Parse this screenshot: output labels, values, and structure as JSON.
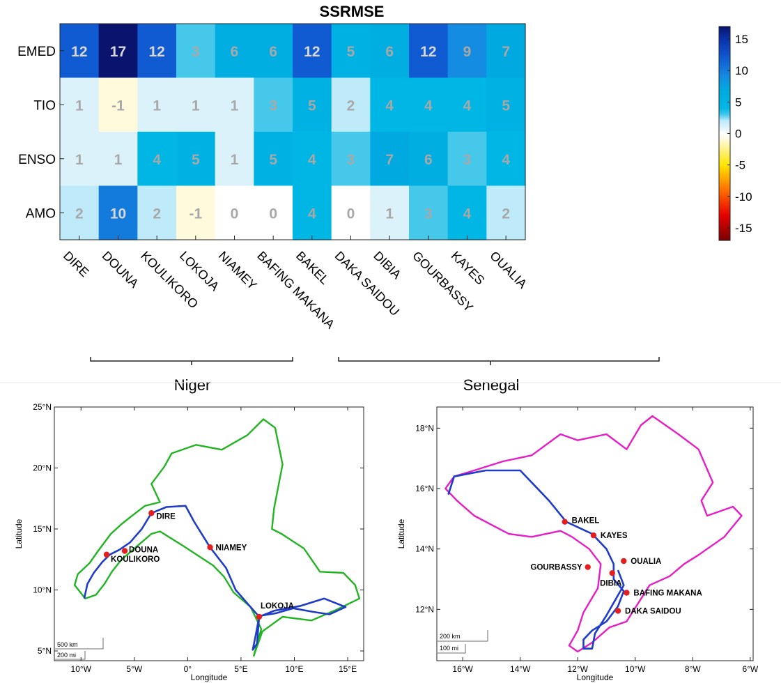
{
  "chart_data": [
    {
      "type": "heatmap",
      "title": "SSRMSE",
      "rows": [
        "EMED",
        "TIO",
        "ENSO",
        "AMO"
      ],
      "columns": [
        "DIRE",
        "DOUNA",
        "KOULIKORO",
        "LOKOJA",
        "NIAMEY",
        "BAFING MAKANA",
        "BAKEL",
        "DAKA SAIDOU",
        "DIBIA",
        "GOURBASSY",
        "KAYES",
        "OUALIA"
      ],
      "values": [
        [
          12,
          17,
          12,
          3,
          6,
          6,
          12,
          5,
          6,
          12,
          9,
          7
        ],
        [
          1,
          -1,
          1,
          1,
          1,
          3,
          5,
          2,
          4,
          4,
          4,
          5
        ],
        [
          1,
          1,
          4,
          5,
          1,
          5,
          4,
          3,
          7,
          6,
          3,
          4
        ],
        [
          2,
          10,
          2,
          -1,
          0,
          0,
          4,
          0,
          1,
          3,
          4,
          2
        ]
      ],
      "value_labels": [
        [
          "12",
          "17",
          "12",
          "3",
          "6",
          "6",
          "12",
          "5",
          "6",
          "12",
          "9",
          "7"
        ],
        [
          "1",
          "-1",
          "1",
          "1",
          "1",
          "3",
          "5",
          "2",
          "4",
          "4",
          "4",
          "5"
        ],
        [
          "1",
          "1",
          "4",
          "5",
          "1",
          "5",
          "4",
          "3",
          "7",
          "6",
          "3",
          "4"
        ],
        [
          "2",
          "10",
          "2",
          "-1",
          "0",
          "0",
          "4",
          "0",
          "1",
          "3",
          "4",
          "2"
        ]
      ],
      "colorbar": {
        "range": [
          -17,
          17
        ],
        "ticks": [
          15,
          10,
          5,
          0,
          -5,
          -10,
          -15
        ],
        "tick_labels": [
          "15",
          "10",
          "5",
          "0",
          "-5",
          "-10",
          "-15"
        ]
      },
      "groups": [
        {
          "name": "Niger",
          "columns": [
            "DIRE",
            "DOUNA",
            "KOULIKORO",
            "LOKOJA",
            "NIAMEY"
          ]
        },
        {
          "name": "Senegal",
          "columns": [
            "BAFING MAKANA",
            "BAKEL",
            "DAKA SAIDOU",
            "DIBIA",
            "GOURBASSY",
            "KAYES",
            "OUALIA"
          ]
        }
      ]
    },
    {
      "type": "map",
      "title": "",
      "xlabel": "Longitude",
      "ylabel": "Latitude",
      "xlim": [
        -12.5,
        16.5
      ],
      "ylim": [
        4.2,
        25
      ],
      "xticks": [
        -10,
        -5,
        0,
        5,
        10,
        15
      ],
      "xtick_labels": [
        "10°W",
        "5°W",
        "0°",
        "5°E",
        "10°E",
        "15°E"
      ],
      "yticks": [
        5,
        10,
        15,
        20,
        25
      ],
      "ytick_labels": [
        "5°N",
        "10°N",
        "15°N",
        "20°N",
        "25°N"
      ],
      "scale_labels": [
        "500 km",
        "200 mi"
      ],
      "colors": {
        "basin": "#22b422",
        "river": "#1e3cc8",
        "station": "#e61e1e"
      },
      "stations": [
        {
          "name": "DIRE",
          "lon": -3.4,
          "lat": 16.3
        },
        {
          "name": "DOUNA",
          "lon": -5.9,
          "lat": 13.2
        },
        {
          "name": "KOULIKORO",
          "lon": -7.6,
          "lat": 12.9
        },
        {
          "name": "NIAMEY",
          "lon": 2.1,
          "lat": 13.5
        },
        {
          "name": "LOKOJA",
          "lon": 6.7,
          "lat": 7.8
        }
      ],
      "basin_outline": [
        [
          -9.6,
          9.3
        ],
        [
          -10.6,
          10.4
        ],
        [
          -10.3,
          11.3
        ],
        [
          -9.2,
          12.2
        ],
        [
          -8.4,
          13.2
        ],
        [
          -7.2,
          14.6
        ],
        [
          -6.2,
          15.4
        ],
        [
          -5.2,
          16.1
        ],
        [
          -4.0,
          16.9
        ],
        [
          -2.6,
          17.2
        ],
        [
          -3.4,
          18.7
        ],
        [
          -2.2,
          20.1
        ],
        [
          -1.5,
          21.2
        ],
        [
          0.8,
          21.9
        ],
        [
          3.2,
          21.5
        ],
        [
          5.6,
          22.7
        ],
        [
          7.1,
          24.0
        ],
        [
          8.2,
          23.3
        ],
        [
          8.9,
          20.3
        ],
        [
          8.1,
          16.7
        ],
        [
          7.9,
          15.0
        ],
        [
          8.8,
          14.6
        ],
        [
          10.9,
          13.4
        ],
        [
          12.4,
          11.5
        ],
        [
          14.6,
          11.4
        ],
        [
          15.7,
          10.4
        ],
        [
          16.1,
          9.3
        ],
        [
          14.0,
          8.4
        ],
        [
          11.6,
          7.5
        ],
        [
          8.9,
          7.8
        ],
        [
          7.0,
          6.6
        ],
        [
          6.2,
          4.6
        ],
        [
          6.9,
          6.8
        ],
        [
          5.9,
          8.6
        ],
        [
          4.3,
          9.8
        ],
        [
          3.4,
          11.1
        ],
        [
          2.4,
          12.0
        ],
        [
          -0.4,
          13.6
        ],
        [
          -2.6,
          14.8
        ],
        [
          -3.4,
          14.6
        ],
        [
          -4.6,
          13.7
        ],
        [
          -6.2,
          12.5
        ],
        [
          -7.1,
          11.5
        ],
        [
          -7.8,
          10.5
        ],
        [
          -8.6,
          9.6
        ],
        [
          -9.6,
          9.3
        ]
      ],
      "river_path": [
        [
          -9.7,
          9.3
        ],
        [
          -9.4,
          10.5
        ],
        [
          -8.8,
          11.4
        ],
        [
          -8.0,
          12.3
        ],
        [
          -7.3,
          12.9
        ],
        [
          -6.4,
          13.3
        ],
        [
          -5.4,
          13.9
        ],
        [
          -4.3,
          15.0
        ],
        [
          -3.4,
          16.3
        ],
        [
          -2.0,
          16.8
        ],
        [
          -0.2,
          16.9
        ],
        [
          0.6,
          15.6
        ],
        [
          2.1,
          13.5
        ],
        [
          3.6,
          11.8
        ],
        [
          4.5,
          10.0
        ],
        [
          5.8,
          8.7
        ],
        [
          6.7,
          7.8
        ],
        [
          6.4,
          6.4
        ],
        [
          6.1,
          5.1
        ],
        [
          6.5,
          5.6
        ],
        [
          6.7,
          7.8
        ],
        [
          8.1,
          8.3
        ],
        [
          10.6,
          8.7
        ],
        [
          12.8,
          9.3
        ],
        [
          14.8,
          8.6
        ],
        [
          13.3,
          8.0
        ],
        [
          11.8,
          8.2
        ],
        [
          9.9,
          8.5
        ],
        [
          8.3,
          8.1
        ],
        [
          6.9,
          7.9
        ]
      ]
    },
    {
      "type": "map",
      "title": "",
      "xlabel": "Longitude",
      "ylabel": "Latitude",
      "xlim": [
        -16.9,
        -5.9
      ],
      "ylim": [
        10.3,
        18.7
      ],
      "xticks": [
        -16,
        -14,
        -12,
        -10,
        -8,
        -6
      ],
      "xtick_labels": [
        "16°W",
        "14°W",
        "12°W",
        "10°W",
        "8°W",
        "6°W"
      ],
      "yticks": [
        12,
        14,
        16,
        18
      ],
      "ytick_labels": [
        "12°N",
        "14°N",
        "16°N",
        "18°N"
      ],
      "scale_labels": [
        "200 km",
        "100 mi"
      ],
      "colors": {
        "basin": "#e61ec8",
        "river": "#1e3cc8",
        "station": "#e61e1e"
      },
      "stations": [
        {
          "name": "BAKEL",
          "lon": -12.45,
          "lat": 14.9
        },
        {
          "name": "KAYES",
          "lon": -11.45,
          "lat": 14.45
        },
        {
          "name": "OUALIA",
          "lon": -10.4,
          "lat": 13.6
        },
        {
          "name": "GOURBASSY",
          "lon": -11.65,
          "lat": 13.4
        },
        {
          "name": "DIBIA",
          "lon": -10.8,
          "lat": 13.2
        },
        {
          "name": "BAFING MAKANA",
          "lon": -10.3,
          "lat": 12.55
        },
        {
          "name": "DAKA SAIDOU",
          "lon": -10.6,
          "lat": 11.95
        }
      ],
      "basin_outline": [
        [
          -16.6,
          16.0
        ],
        [
          -16.3,
          16.4
        ],
        [
          -15.6,
          16.6
        ],
        [
          -14.6,
          16.9
        ],
        [
          -13.6,
          17.1
        ],
        [
          -12.6,
          17.8
        ],
        [
          -12.0,
          17.6
        ],
        [
          -11.0,
          17.8
        ],
        [
          -10.3,
          17.3
        ],
        [
          -9.8,
          18.1
        ],
        [
          -9.4,
          18.4
        ],
        [
          -8.5,
          17.8
        ],
        [
          -7.8,
          17.3
        ],
        [
          -7.3,
          16.2
        ],
        [
          -7.7,
          15.6
        ],
        [
          -7.5,
          15.1
        ],
        [
          -6.6,
          15.4
        ],
        [
          -6.3,
          15.1
        ],
        [
          -6.9,
          14.4
        ],
        [
          -7.8,
          13.8
        ],
        [
          -8.3,
          13.5
        ],
        [
          -8.8,
          13.1
        ],
        [
          -9.5,
          12.8
        ],
        [
          -9.9,
          12.2
        ],
        [
          -10.3,
          11.6
        ],
        [
          -10.9,
          11.4
        ],
        [
          -11.5,
          10.9
        ],
        [
          -12.0,
          10.6
        ],
        [
          -12.3,
          10.8
        ],
        [
          -12.0,
          11.3
        ],
        [
          -11.8,
          11.9
        ],
        [
          -11.3,
          12.7
        ],
        [
          -11.2,
          13.5
        ],
        [
          -11.6,
          14.0
        ],
        [
          -12.2,
          14.4
        ],
        [
          -12.6,
          14.6
        ],
        [
          -13.6,
          14.4
        ],
        [
          -14.4,
          14.5
        ],
        [
          -14.8,
          14.7
        ],
        [
          -15.6,
          15.1
        ],
        [
          -16.2,
          15.6
        ],
        [
          -16.6,
          16.0
        ]
      ],
      "river_path": [
        [
          -16.5,
          15.8
        ],
        [
          -16.3,
          16.4
        ],
        [
          -15.2,
          16.6
        ],
        [
          -14.0,
          16.6
        ],
        [
          -13.6,
          16.2
        ],
        [
          -13.0,
          15.6
        ],
        [
          -12.4,
          14.9
        ],
        [
          -11.5,
          14.5
        ],
        [
          -11.0,
          14.0
        ],
        [
          -10.75,
          13.5
        ],
        [
          -10.75,
          13.0
        ],
        [
          -10.4,
          12.6
        ],
        [
          -10.6,
          12.1
        ],
        [
          -11.0,
          11.6
        ],
        [
          -11.5,
          11.3
        ],
        [
          -11.8,
          11.0
        ],
        [
          -11.8,
          10.7
        ],
        [
          -11.5,
          10.7
        ],
        [
          -11.4,
          11.2
        ],
        [
          -11.0,
          11.8
        ],
        [
          -10.7,
          12.3
        ],
        [
          -10.4,
          12.8
        ],
        [
          -10.6,
          13.3
        ]
      ]
    }
  ],
  "labels": {
    "heatmap_title": "SSRMSE",
    "niger_group": "Niger",
    "senegal_group": "Senegal",
    "map_xlabel": "Longitude",
    "map_ylabel": "Latitude"
  }
}
